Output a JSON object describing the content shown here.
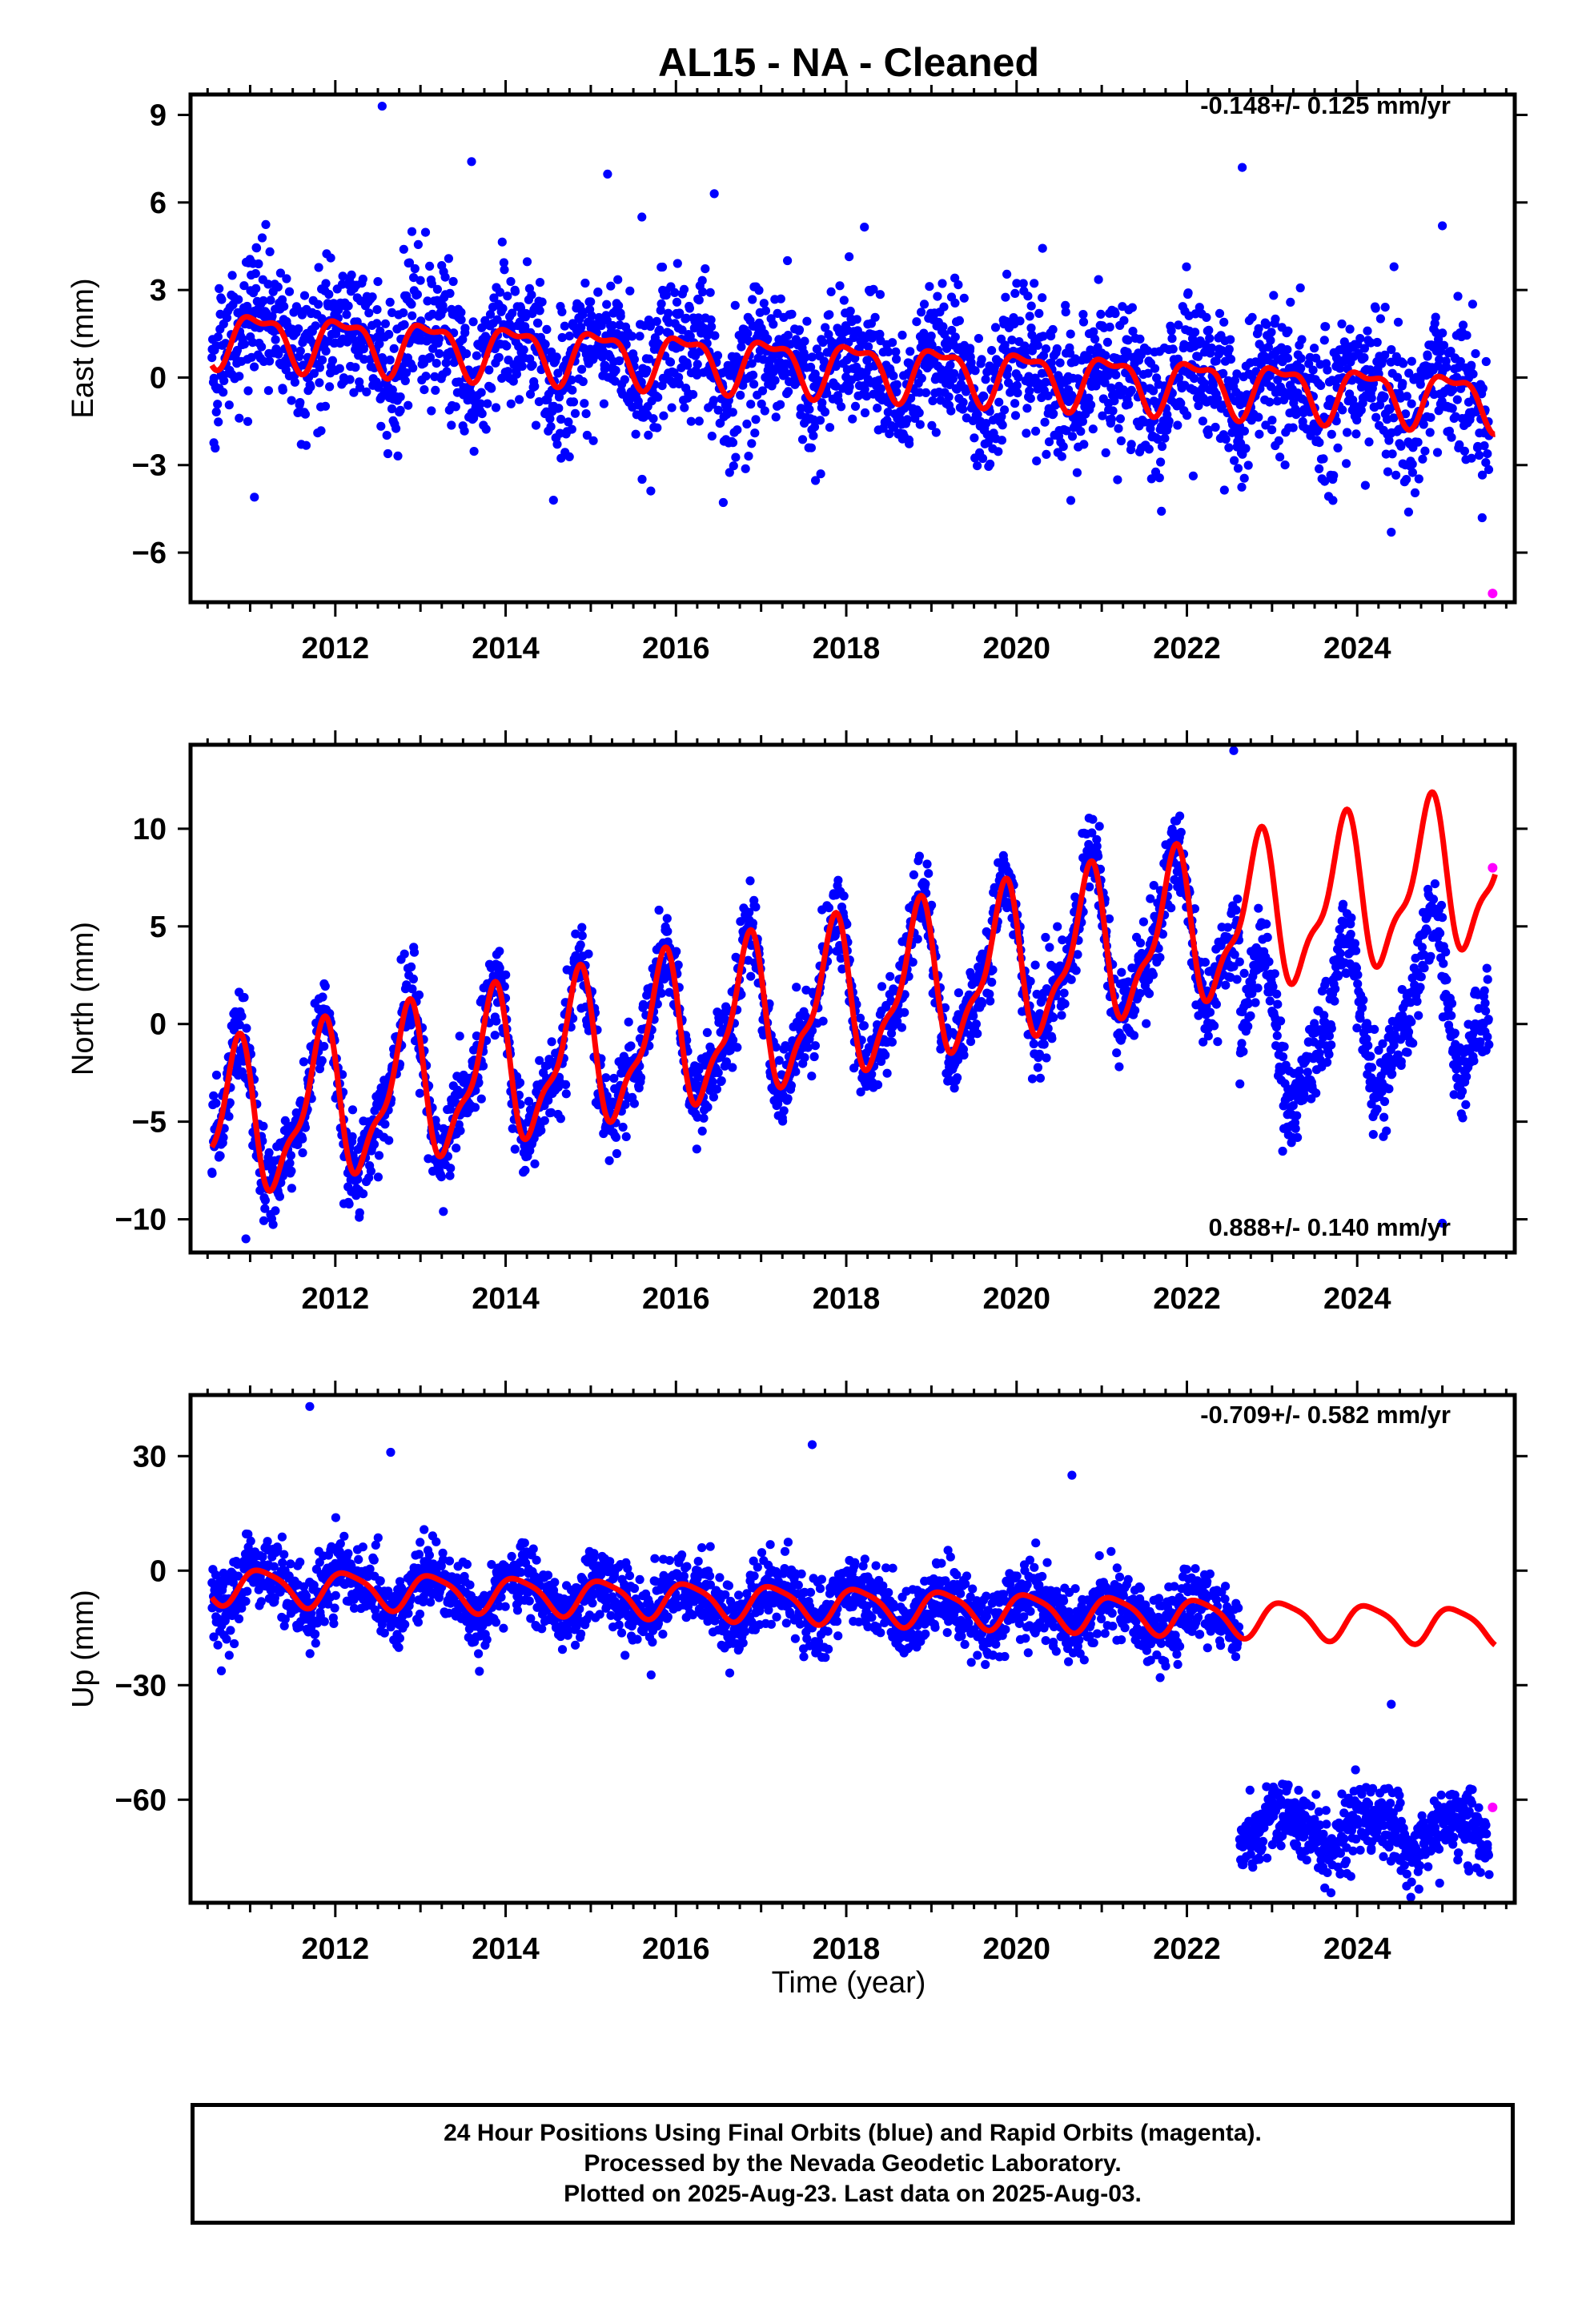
{
  "title": "AL15  - NA - Cleaned",
  "xlabel": "Time (year)",
  "footer": {
    "line1": "24 Hour Positions Using Final Orbits (blue) and Rapid Orbits (magenta).",
    "line2": "Processed by the Nevada Geodetic Laboratory.",
    "line3": "Plotted on 2025-Aug-23. Last data on 2025-Aug-03."
  },
  "colors": {
    "final_orbits": "#0000ff",
    "rapid_orbits": "#ff00ff",
    "model": "#ff0000"
  },
  "chart_data": [
    {
      "type": "scatter",
      "ylabel": "East (mm)",
      "velocity_text": "-0.148+/- 0.125 mm/yr",
      "xlim": [
        2010.3,
        2025.85
      ],
      "ylim": [
        -7.7,
        9.7
      ],
      "xticks": [
        2012,
        2014,
        2016,
        2018,
        2020,
        2022,
        2024
      ],
      "yticks": [
        -6,
        -3,
        0,
        3,
        6,
        9
      ],
      "model": {
        "start": 2010.55,
        "end": 2025.62,
        "offset_start": 1.45,
        "offset_end": -0.75,
        "amp1": 0.85,
        "amp2": 0.35,
        "phase": 0.15,
        "jumps": []
      },
      "scatter_noise": 1.2,
      "final_orbits": {
        "start": 2010.55,
        "end": 2025.55,
        "outliers": [
          [
            2012.55,
            9.3
          ],
          [
            2013.6,
            7.4
          ],
          [
            2016.45,
            6.3
          ],
          [
            2022.65,
            7.2
          ],
          [
            2011.05,
            -4.1
          ],
          [
            2024.4,
            -5.3
          ],
          [
            2025.0,
            5.2
          ],
          [
            2015.6,
            5.5
          ]
        ],
        "gaps": [],
        "jumps": []
      },
      "rapid_orbits": [
        [
          2025.59,
          -7.4
        ]
      ]
    },
    {
      "type": "scatter",
      "ylabel": "North (mm)",
      "velocity_text": "0.888+/- 0.140 mm/yr",
      "xlim": [
        2010.3,
        2025.85
      ],
      "ylim": [
        -11.7,
        14.3
      ],
      "xticks": [
        2012,
        2014,
        2016,
        2018,
        2020,
        2022,
        2024
      ],
      "yticks": [
        -10,
        -5,
        0,
        5,
        10
      ],
      "model": {
        "start": 2010.55,
        "end": 2025.62,
        "offset_start": -5.4,
        "offset_end": 7.9,
        "amp1": 3.6,
        "amp2": 1.3,
        "phase": 0.42,
        "jumps": []
      },
      "scatter_noise": 1.1,
      "final_orbits": {
        "start": 2010.55,
        "end": 2025.55,
        "outliers": [
          [
            2022.55,
            14.0
          ],
          [
            2010.95,
            -11.0
          ],
          [
            2025.0,
            -10.2
          ],
          [
            2012.1,
            -9.2
          ]
        ],
        "gaps": [],
        "jumps": [
          {
            "after": 2022.62,
            "shift": -6.3
          }
        ]
      },
      "rapid_orbits": [
        [
          2025.59,
          8.0
        ]
      ]
    },
    {
      "type": "scatter",
      "ylabel": "Up (mm)",
      "velocity_text": "-0.709+/- 0.582 mm/yr",
      "xlim": [
        2010.3,
        2025.85
      ],
      "ylim": [
        -87,
        46
      ],
      "xticks": [
        2012,
        2014,
        2016,
        2018,
        2020,
        2022,
        2024
      ],
      "yticks": [
        -60,
        -30,
        0,
        30
      ],
      "model": {
        "start": 2010.55,
        "end": 2025.62,
        "offset_start": -3.7,
        "offset_end": -14.5,
        "amp1": 4.6,
        "amp2": 1.0,
        "phase": 0.1,
        "jumps": []
      },
      "scatter_noise": 4.8,
      "final_orbits": {
        "start": 2010.55,
        "end": 2025.55,
        "outliers": [
          [
            2011.7,
            43.0
          ],
          [
            2017.6,
            33.0
          ],
          [
            2012.65,
            31.0
          ],
          [
            2020.65,
            25.0
          ],
          [
            2024.4,
            -35.0
          ]
        ],
        "gaps": [],
        "jumps": [
          {
            "after": 2022.62,
            "shift": -55.0
          }
        ]
      },
      "rapid_orbits": [
        [
          2025.59,
          -62.0
        ]
      ]
    }
  ]
}
